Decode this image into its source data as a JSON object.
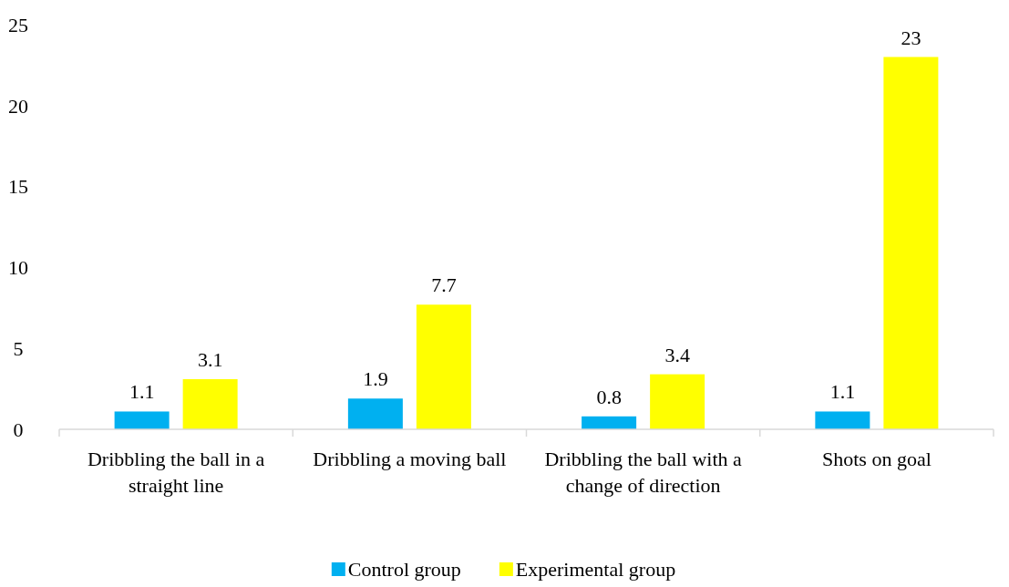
{
  "chart_data": {
    "type": "bar",
    "categories": [
      "Dribbling the ball in a straight line",
      "Dribbling a moving ball",
      "Dribbling the ball with a change of direction",
      "Shots on goal"
    ],
    "series": [
      {
        "name": "Control group",
        "color": "#00b0f0",
        "values": [
          1.1,
          1.9,
          0.8,
          1.1
        ]
      },
      {
        "name": "Experimental group",
        "color": "#ffff00",
        "values": [
          3.1,
          7.7,
          3.4,
          23
        ]
      }
    ],
    "ylim": [
      0,
      25
    ],
    "yticks": [
      0,
      5,
      10,
      15,
      20,
      25
    ],
    "data_labels": true,
    "legend": "bottom"
  }
}
